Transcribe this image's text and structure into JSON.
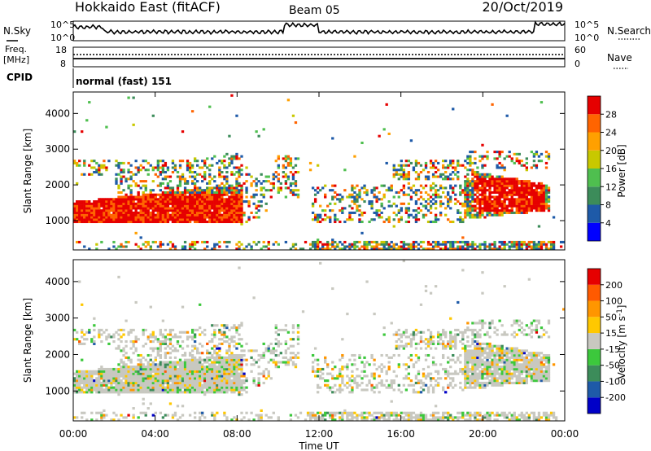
{
  "header": {
    "station": "Hokkaido East (fitACF)",
    "beam": "Beam 05",
    "date": "20/Oct/2019"
  },
  "strips": {
    "nsky_label": "N.Sky",
    "nsearch_label": "N.Search",
    "noise_ticks": [
      "10^5",
      "10^0"
    ],
    "freq_label_1": "Freq.",
    "freq_label_2": "[MHz]",
    "freq_ticks": [
      "18",
      "8"
    ],
    "nave_label": "Nave",
    "nave_ticks": [
      "60",
      "0"
    ],
    "cpid_label": "CPID",
    "cpid_text": "normal (fast) 151"
  },
  "colors": {
    "power": [
      "#0000ff",
      "#1e5aa8",
      "#3c8c5a",
      "#4fbf4f",
      "#c8c800",
      "#ffa000",
      "#ff6400",
      "#e60000"
    ],
    "velocity": [
      "#0000c8",
      "#1e5aa8",
      "#3c8c5a",
      "#3cc83c",
      "#c8c8c0",
      "#ffc800",
      "#ff9600",
      "#ff5a00",
      "#e60000"
    ]
  },
  "chart_data": [
    {
      "type": "heatmap",
      "name": "power",
      "ylabel": "Slant Range [km]",
      "xlim": [
        0,
        24
      ],
      "ylim": [
        180,
        4600
      ],
      "yticks": [
        "1000",
        "2000",
        "3000",
        "4000"
      ],
      "colorbar_label": "Power [dB]",
      "colorbar_ticks": [
        "4",
        "8",
        "12",
        "16",
        "20",
        "24",
        "28"
      ]
    },
    {
      "type": "heatmap",
      "name": "velocity",
      "ylabel": "Slant Range [km]",
      "xlabel": "Time UT",
      "xlim": [
        0,
        24
      ],
      "ylim": [
        180,
        4600
      ],
      "xticks": [
        "00:00",
        "04:00",
        "08:00",
        "12:00",
        "16:00",
        "20:00",
        "00:00"
      ],
      "yticks": [
        "1000",
        "2000",
        "3000",
        "4000"
      ],
      "colorbar_label": "Velocity [m s-1]",
      "colorbar_ticks": [
        "200",
        "100",
        "50",
        "15",
        "-15",
        "-50",
        "-100",
        "-200"
      ]
    }
  ]
}
